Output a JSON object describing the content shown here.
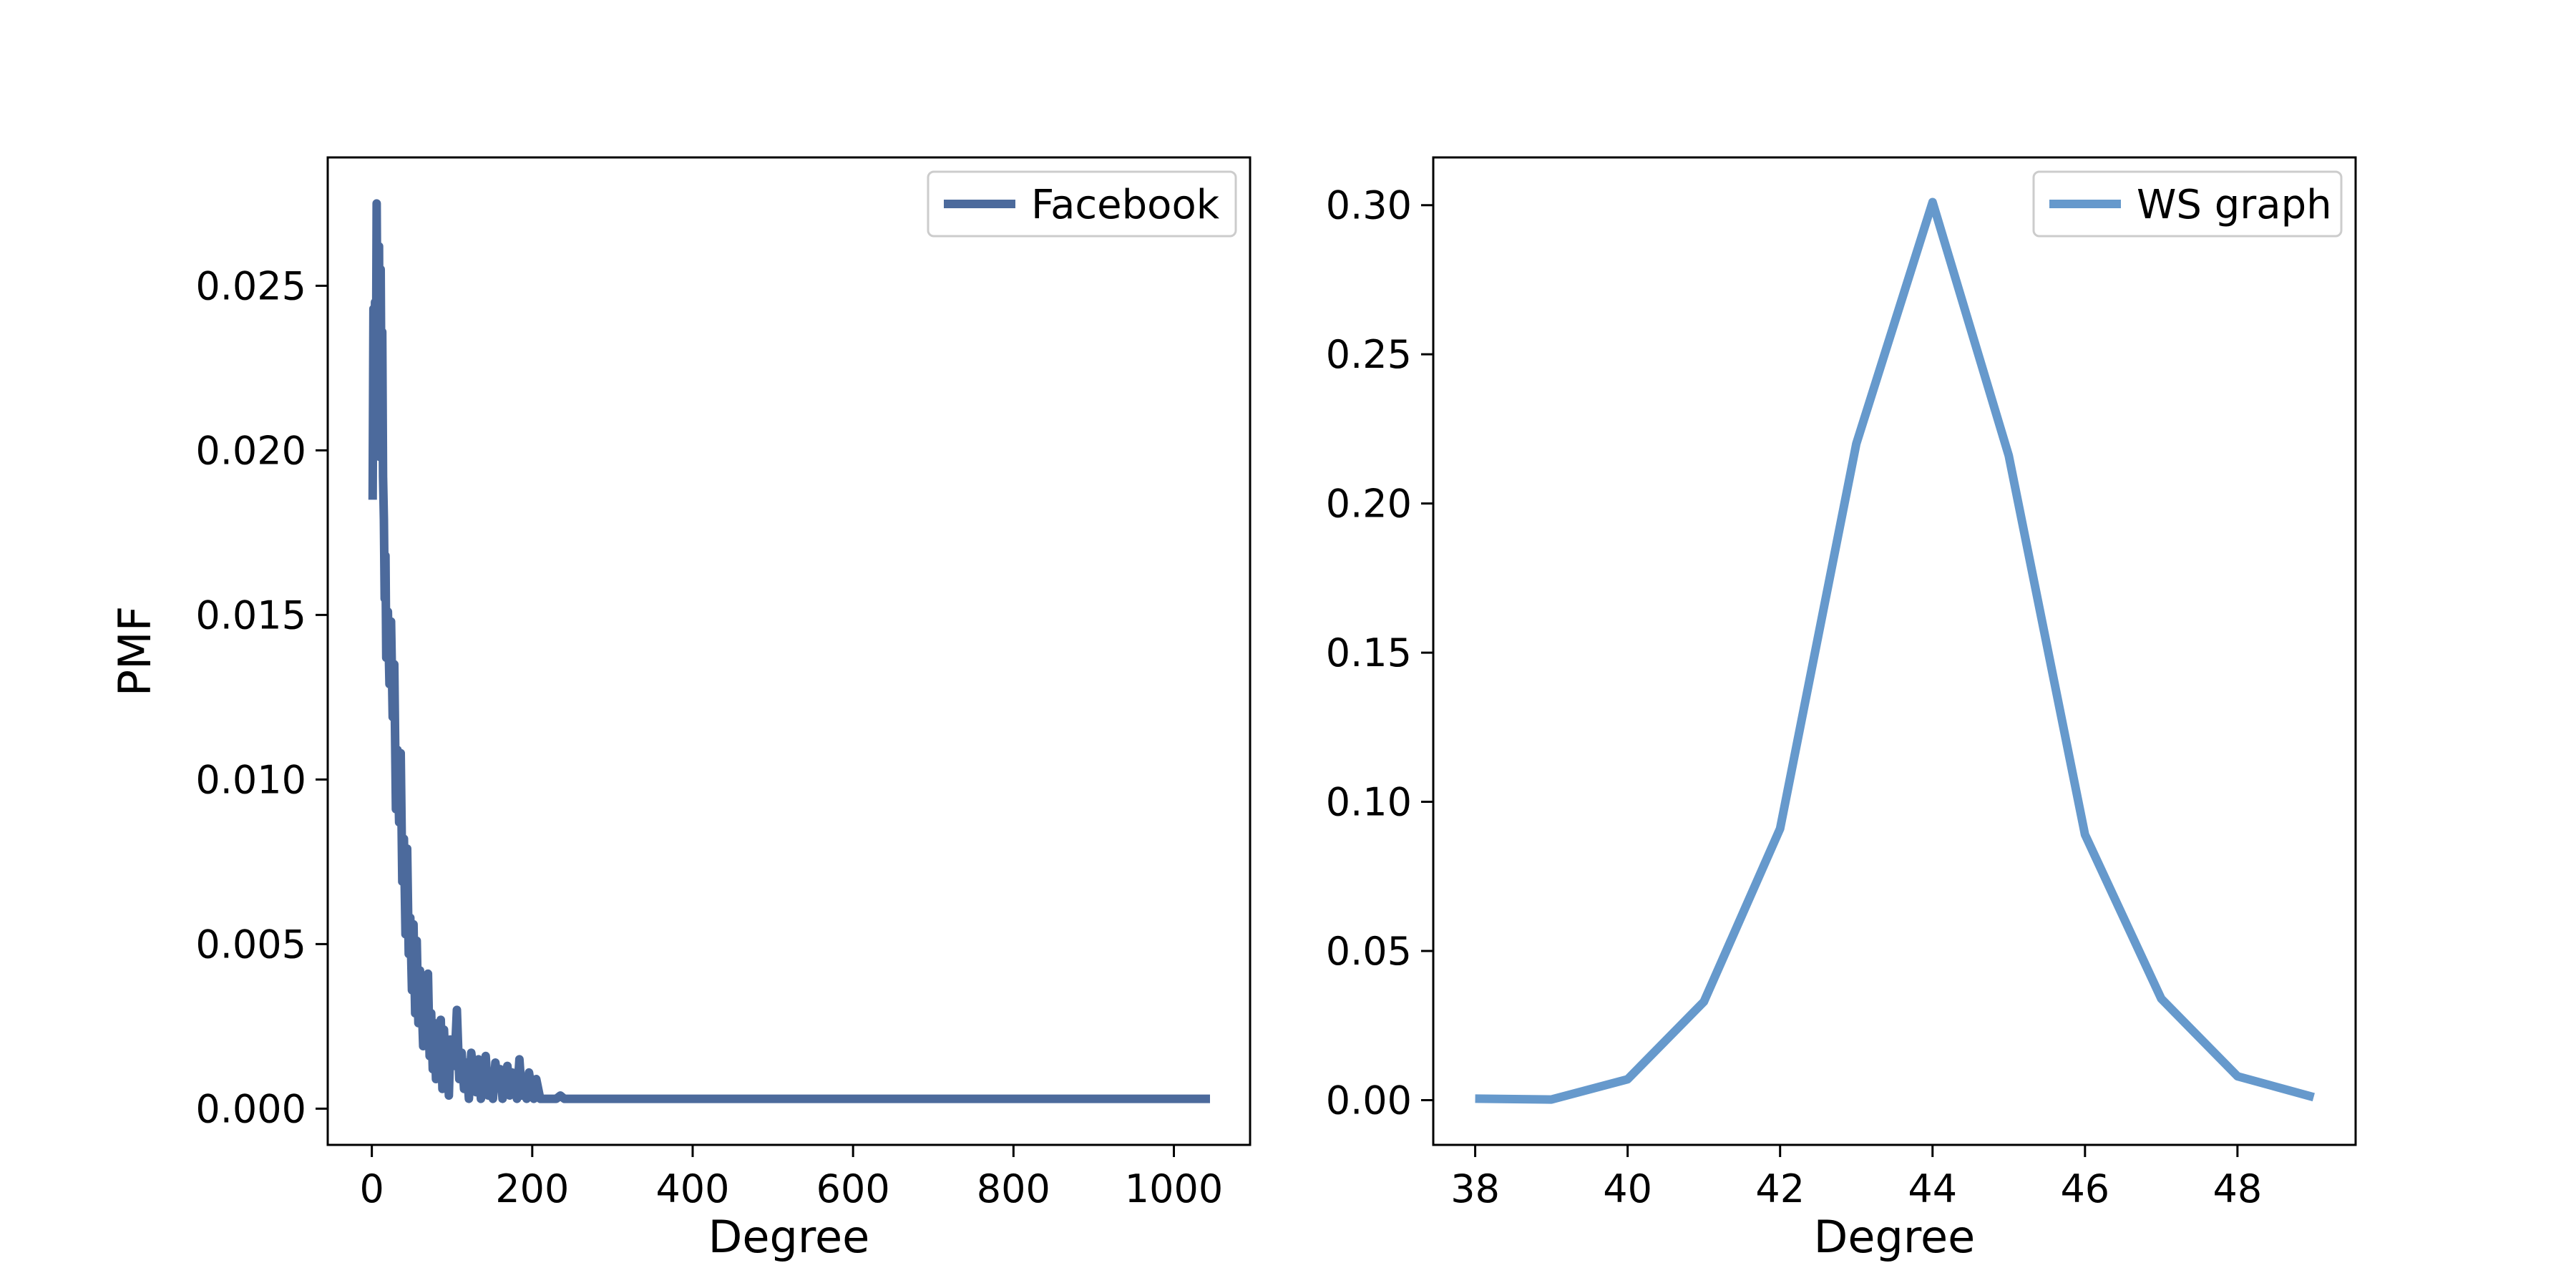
{
  "figure": {
    "background": "#ffffff"
  },
  "chart_data": [
    {
      "type": "line",
      "title": "",
      "xlabel": "Degree",
      "ylabel": "PMF",
      "xlim": [
        -55,
        1095
      ],
      "ylim": [
        -0.0011,
        0.0289
      ],
      "xticks": [
        0,
        200,
        400,
        600,
        800,
        1000
      ],
      "xtick_labels": [
        "0",
        "200",
        "400",
        "600",
        "800",
        "1000"
      ],
      "yticks": [
        0.0,
        0.005,
        0.01,
        0.015,
        0.02,
        0.025
      ],
      "ytick_labels": [
        "0.000",
        "0.005",
        "0.010",
        "0.015",
        "0.020",
        "0.025"
      ],
      "grid": false,
      "legend_position": "top-right",
      "series": [
        {
          "name": "Facebook",
          "color": "#4c6a9c",
          "x": [
            1,
            2,
            3,
            4,
            5,
            6,
            7,
            8,
            9,
            10,
            11,
            12,
            13,
            14,
            15,
            16,
            17,
            18,
            20,
            22,
            24,
            26,
            28,
            30,
            32,
            34,
            36,
            38,
            40,
            42,
            44,
            46,
            48,
            50,
            52,
            54,
            56,
            58,
            60,
            62,
            64,
            66,
            68,
            70,
            72,
            74,
            76,
            78,
            80,
            82,
            84,
            86,
            88,
            90,
            92,
            94,
            96,
            98,
            100,
            103,
            106,
            109,
            112,
            115,
            118,
            121,
            124,
            127,
            130,
            133,
            136,
            139,
            142,
            145,
            148,
            151,
            154,
            157,
            160,
            163,
            166,
            169,
            172,
            175,
            178,
            181,
            184,
            187,
            190,
            193,
            196,
            199,
            202,
            205,
            210,
            215,
            220,
            225,
            230,
            235,
            240,
            260,
            300,
            400,
            500,
            600,
            700,
            800,
            900,
            1000,
            1045
          ],
          "values": [
            0.0185,
            0.0243,
            0.0198,
            0.0245,
            0.0214,
            0.0275,
            0.0232,
            0.0205,
            0.0262,
            0.0198,
            0.0255,
            0.0213,
            0.0236,
            0.0192,
            0.0179,
            0.0155,
            0.0168,
            0.0137,
            0.0151,
            0.0129,
            0.0148,
            0.0119,
            0.0135,
            0.0091,
            0.0109,
            0.0087,
            0.0108,
            0.0069,
            0.0082,
            0.0053,
            0.0079,
            0.0047,
            0.0058,
            0.0036,
            0.0056,
            0.0029,
            0.0051,
            0.0026,
            0.0042,
            0.0034,
            0.0019,
            0.0038,
            0.0022,
            0.0041,
            0.0016,
            0.0029,
            0.0012,
            0.0026,
            0.0009,
            0.0022,
            0.0014,
            0.0027,
            0.0006,
            0.0024,
            0.0011,
            0.0019,
            0.0004,
            0.0021,
            0.0017,
            0.0013,
            0.003,
            0.0009,
            0.0017,
            0.0006,
            0.0014,
            0.0003,
            0.0017,
            0.001,
            0.0005,
            0.0015,
            0.0003,
            0.0012,
            0.0016,
            0.0004,
            0.0011,
            0.0003,
            0.0014,
            0.0008,
            0.0012,
            0.0003,
            0.0009,
            0.0013,
            0.0004,
            0.0011,
            0.0008,
            0.0003,
            0.0015,
            0.0004,
            0.0008,
            0.0003,
            0.0011,
            0.0006,
            0.0003,
            0.0009,
            0.0003,
            0.0003,
            0.0003,
            0.0003,
            0.0003,
            0.0004,
            0.0003,
            0.0003,
            0.0003,
            0.0003,
            0.0003,
            0.0003,
            0.0003,
            0.0003,
            0.0003,
            0.0003,
            0.0003
          ]
        }
      ]
    },
    {
      "type": "line",
      "title": "",
      "xlabel": "Degree",
      "ylabel": "",
      "xlim": [
        37.45,
        49.55
      ],
      "ylim": [
        -0.015,
        0.316
      ],
      "xticks": [
        38,
        40,
        42,
        44,
        46,
        48
      ],
      "xtick_labels": [
        "38",
        "40",
        "42",
        "44",
        "46",
        "48"
      ],
      "yticks": [
        0.0,
        0.05,
        0.1,
        0.15,
        0.2,
        0.25,
        0.3
      ],
      "ytick_labels": [
        "0.00",
        "0.05",
        "0.10",
        "0.15",
        "0.20",
        "0.25",
        "0.30"
      ],
      "grid": false,
      "legend_position": "top-right",
      "series": [
        {
          "name": "WS graph",
          "color": "#6699cc",
          "x": [
            38,
            39,
            40,
            41,
            42,
            43,
            44,
            45,
            46,
            47,
            48,
            49
          ],
          "values": [
            0.0005,
            0.0002,
            0.007,
            0.033,
            0.091,
            0.22,
            0.301,
            0.216,
            0.089,
            0.034,
            0.008,
            0.001
          ]
        }
      ]
    }
  ]
}
